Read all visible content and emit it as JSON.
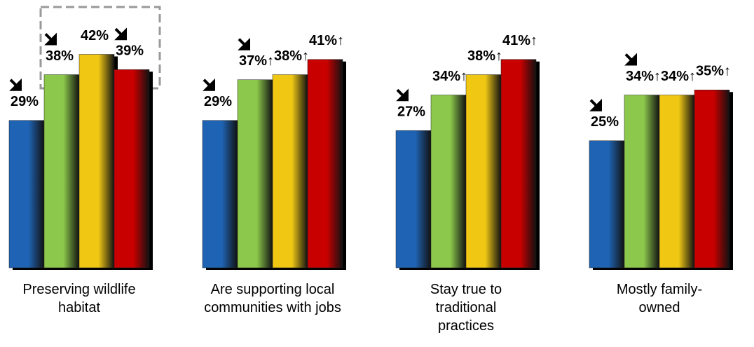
{
  "chart_data": {
    "type": "bar",
    "categories": [
      "Preserving wildlife habitat",
      "Are supporting local communities with jobs",
      "Stay true to traditional practices",
      "Mostly family-owned"
    ],
    "series": [
      {
        "color": "#1f64b4",
        "values": [
          29,
          29,
          27,
          25
        ],
        "value_labels": [
          "29%",
          "29%",
          "27%",
          "25%"
        ],
        "down_arrows": [
          true,
          true,
          true,
          true
        ]
      },
      {
        "color": "#8cc84b",
        "values": [
          38,
          37,
          34,
          34
        ],
        "value_labels": [
          "38%",
          "37%↑",
          "34%↑",
          "34%↑"
        ],
        "down_arrows": [
          true,
          true,
          false,
          true
        ]
      },
      {
        "color": "#f0c814",
        "values": [
          42,
          38,
          38,
          34
        ],
        "value_labels": [
          "42%",
          "38%↑",
          "38%↑",
          "34%↑"
        ],
        "down_arrows": [
          false,
          false,
          false,
          false
        ]
      },
      {
        "color": "#c80000",
        "values": [
          39,
          41,
          41,
          35
        ],
        "value_labels": [
          "39%",
          "41%↑",
          "41%↑",
          "35%↑"
        ],
        "down_arrows": [
          true,
          false,
          false,
          false
        ]
      }
    ]
  }
}
